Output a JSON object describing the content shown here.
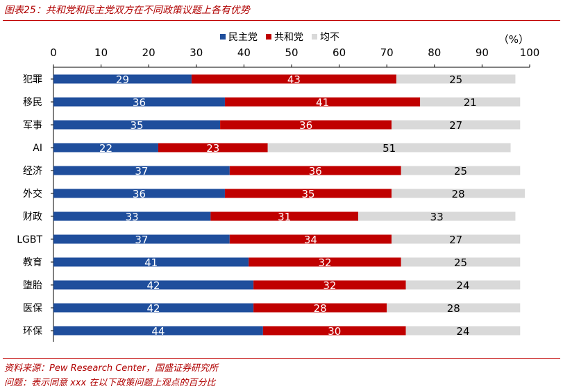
{
  "title": "图表25：共和党和民主党双方在不同政策议题上各有优势",
  "source": "资料来源：Pew Research Center，国盛证券研究所",
  "note": "问题：表示同意 xxx 在以下政策问题上观点的百分比",
  "colors": {
    "民主党": "#1f4e9c",
    "共和党": "#c00000",
    "均不": "#d9d9d9"
  },
  "chart_data": {
    "type": "bar",
    "orientation": "horizontal",
    "stacked": true,
    "unit_label": "（%）",
    "xlim": [
      0,
      100
    ],
    "xticks": [
      0,
      10,
      20,
      30,
      40,
      50,
      60,
      70,
      80,
      90,
      100
    ],
    "legend_position": "top-right",
    "grid": false,
    "categories": [
      "犯罪",
      "移民",
      "军事",
      "AI",
      "经济",
      "外交",
      "财政",
      "LGBT",
      "教育",
      "堕胎",
      "医保",
      "环保"
    ],
    "series": [
      {
        "name": "民主党",
        "values": [
          29,
          36,
          35,
          22,
          37,
          36,
          33,
          37,
          41,
          42,
          42,
          44
        ]
      },
      {
        "name": "共和党",
        "values": [
          43,
          41,
          36,
          23,
          36,
          35,
          31,
          34,
          32,
          32,
          28,
          30
        ]
      },
      {
        "name": "均不",
        "values": [
          25,
          21,
          27,
          51,
          25,
          28,
          33,
          27,
          25,
          24,
          28,
          24
        ]
      }
    ]
  }
}
